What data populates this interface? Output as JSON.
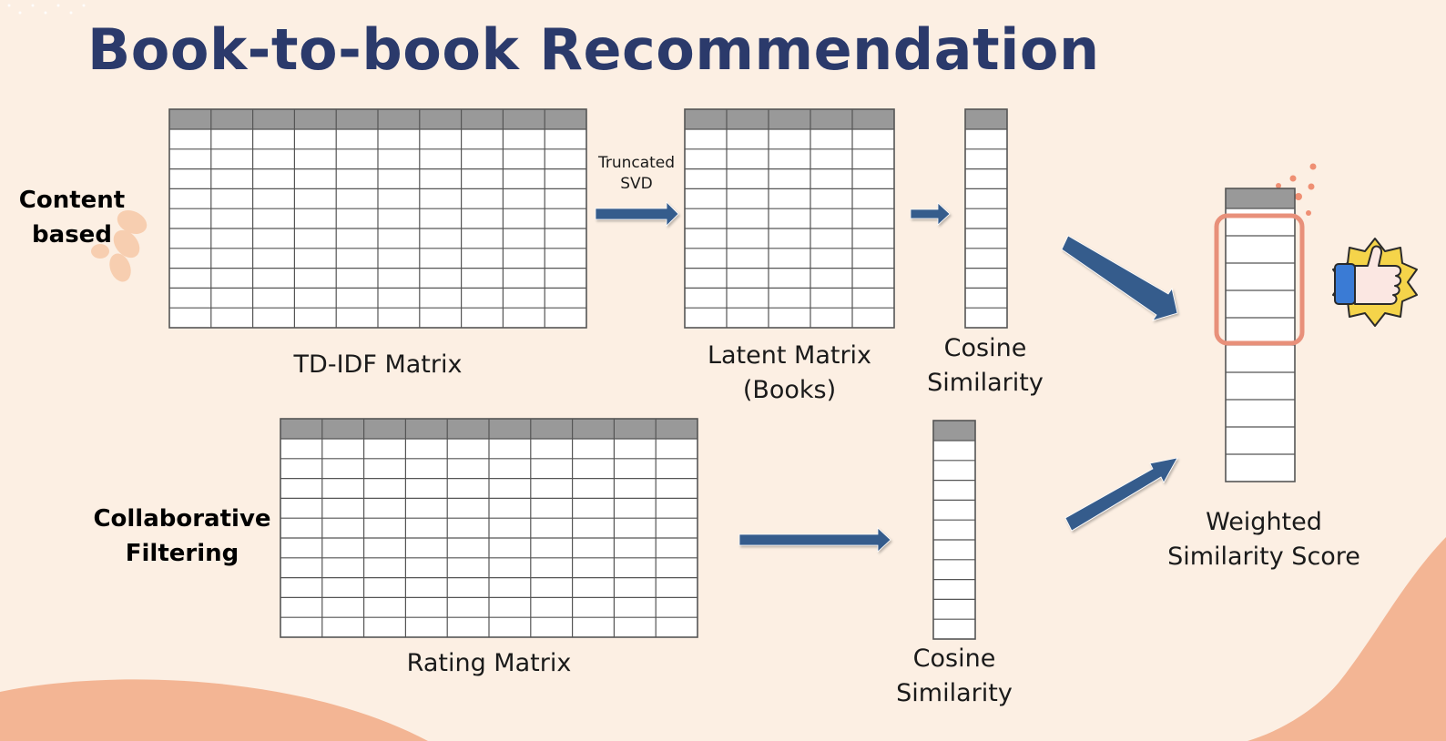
{
  "title": "Book-to-book Recommendation",
  "sections": {
    "content_based": {
      "line1": "Content",
      "line2": "based"
    },
    "collaborative": {
      "line1": "Collaborative",
      "line2": "Filtering"
    }
  },
  "matrices": {
    "tfidf": {
      "label": "TD-IDF Matrix",
      "cols": 10,
      "rows": 10
    },
    "latent": {
      "label_line1": "Latent Matrix",
      "label_line2": "(Books)",
      "cols": 5,
      "rows": 10
    },
    "cosine_top": {
      "label_line1": "Cosine",
      "label_line2": "Similarity",
      "cols": 1,
      "rows": 10
    },
    "rating": {
      "label": "Rating Matrix",
      "cols": 10,
      "rows": 10
    },
    "cosine_bottom": {
      "label_line1": "Cosine",
      "label_line2": "Similarity",
      "cols": 1,
      "rows": 10
    },
    "weighted": {
      "label_line1": "Weighted",
      "label_line2": "Similarity Score",
      "cols": 1,
      "rows": 10
    }
  },
  "transform": {
    "line1": "Truncated",
    "line2": "SVD"
  },
  "icons": {
    "thumbs_up": "thumbs-up-badge-icon"
  },
  "colors": {
    "background": "#fcefe3",
    "title": "#2b3a6b",
    "arrow": "#365b8c",
    "matrix_header": "#999999",
    "highlight": "#e8907a",
    "blob": "#f3b594"
  }
}
